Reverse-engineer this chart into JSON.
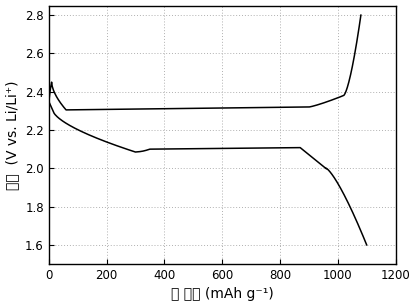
{
  "title": "",
  "xlabel_cn": "比 容量",
  "xlabel_unit": "(mAh g⁻¹)",
  "ylabel_cn": "电压",
  "ylabel_unit": "(V vs. Li/Li⁺)",
  "xlim": [
    0,
    1200
  ],
  "ylim": [
    1.5,
    2.85
  ],
  "xticks": [
    0,
    200,
    400,
    600,
    800,
    1000,
    1200
  ],
  "yticks": [
    1.6,
    1.8,
    2.0,
    2.2,
    2.4,
    2.6,
    2.8
  ],
  "line_color": "#000000",
  "background_color": "#ffffff",
  "grid_color": "#b0b0b0",
  "grid_style": "dotted"
}
